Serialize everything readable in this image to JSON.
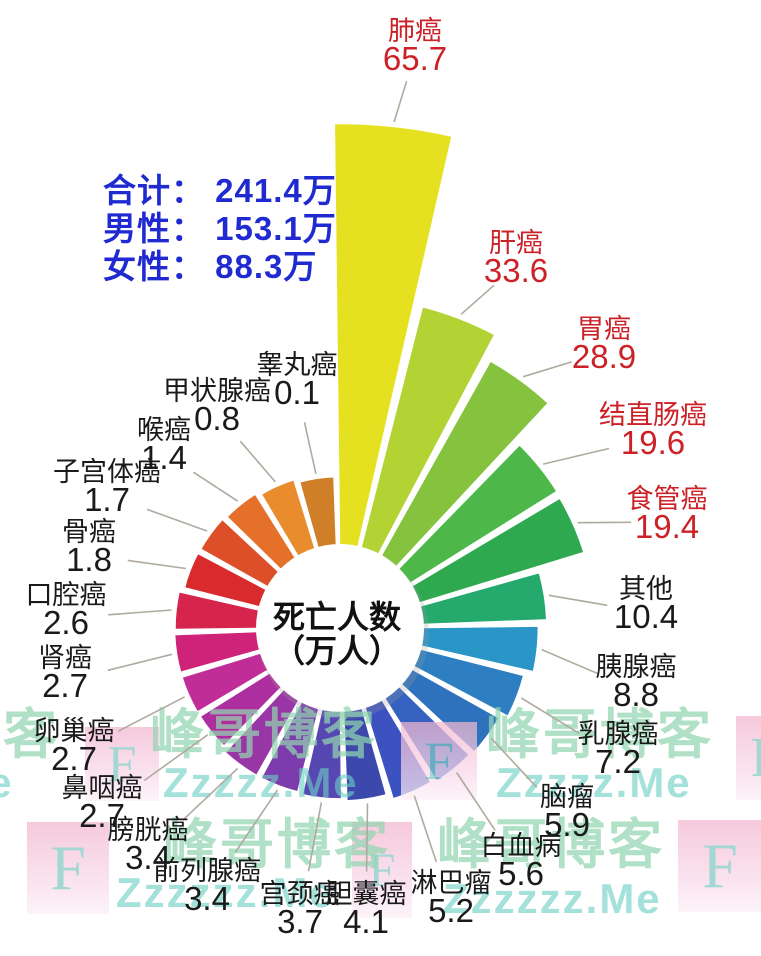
{
  "chart_data": {
    "type": "pie",
    "variant": "nightingale-rose",
    "title": "死亡人数（万人）",
    "center_label_line1": "死亡人数",
    "center_label_line2": "（万人）",
    "unit": "万人",
    "categories": [
      "肺癌",
      "肝癌",
      "胃癌",
      "结直肠癌",
      "食管癌",
      "其他",
      "胰腺癌",
      "乳腺癌",
      "脑瘤",
      "白血病",
      "淋巴瘤",
      "胆囊癌",
      "宫颈癌",
      "前列腺癌",
      "膀胱癌",
      "鼻咽癌",
      "卵巢癌",
      "肾癌",
      "口腔癌",
      "骨癌",
      "子宫体癌",
      "喉癌",
      "甲状腺癌",
      "睾丸癌"
    ],
    "values": [
      65.7,
      33.6,
      28.9,
      19.6,
      19.4,
      10.4,
      8.8,
      7.2,
      5.9,
      5.6,
      5.2,
      4.1,
      3.7,
      3.4,
      3.4,
      2.7,
      2.7,
      2.7,
      2.6,
      1.8,
      1.7,
      1.4,
      0.8,
      0.1
    ],
    "emphasized_categories": [
      "肺癌",
      "肝癌",
      "胃癌",
      "结直肠癌",
      "食管癌"
    ],
    "label_color_default": "#1a1a1a",
    "label_color_emphasized": "#cb2127",
    "wedge_colors": [
      "#e6e120",
      "#b3d335",
      "#85c33f",
      "#4eb74a",
      "#2fa94f",
      "#25a96d",
      "#2a95c7",
      "#2d7fc2",
      "#2e72bd",
      "#3562c1",
      "#3b52c0",
      "#3c48ac",
      "#5747b3",
      "#7c3cae",
      "#9836a5",
      "#ad2f9f",
      "#c12d97",
      "#ce2379",
      "#d5254c",
      "#d92b2d",
      "#dd4f28",
      "#e4702a",
      "#e88c2d",
      "#cf7f28"
    ],
    "legend_position": "none",
    "grid": false
  },
  "stats": {
    "lines": [
      "合计： 241.4万",
      "男性： 153.1万",
      "女性： 88.3万"
    ],
    "color": "#1f2ad0"
  },
  "watermark": {
    "brand_text": "峰哥博客",
    "site_text": "Zzzzz.Me",
    "site_text_alt": "Zzzzzz.Me",
    "logo_letter": "F",
    "brand_color": "#a9e2bd",
    "site_color": "#8fd8d2",
    "logo_color": "#aadcd6",
    "box_color_top": "#f3b6cf",
    "box_color_bottom": "#fdf0f7"
  }
}
